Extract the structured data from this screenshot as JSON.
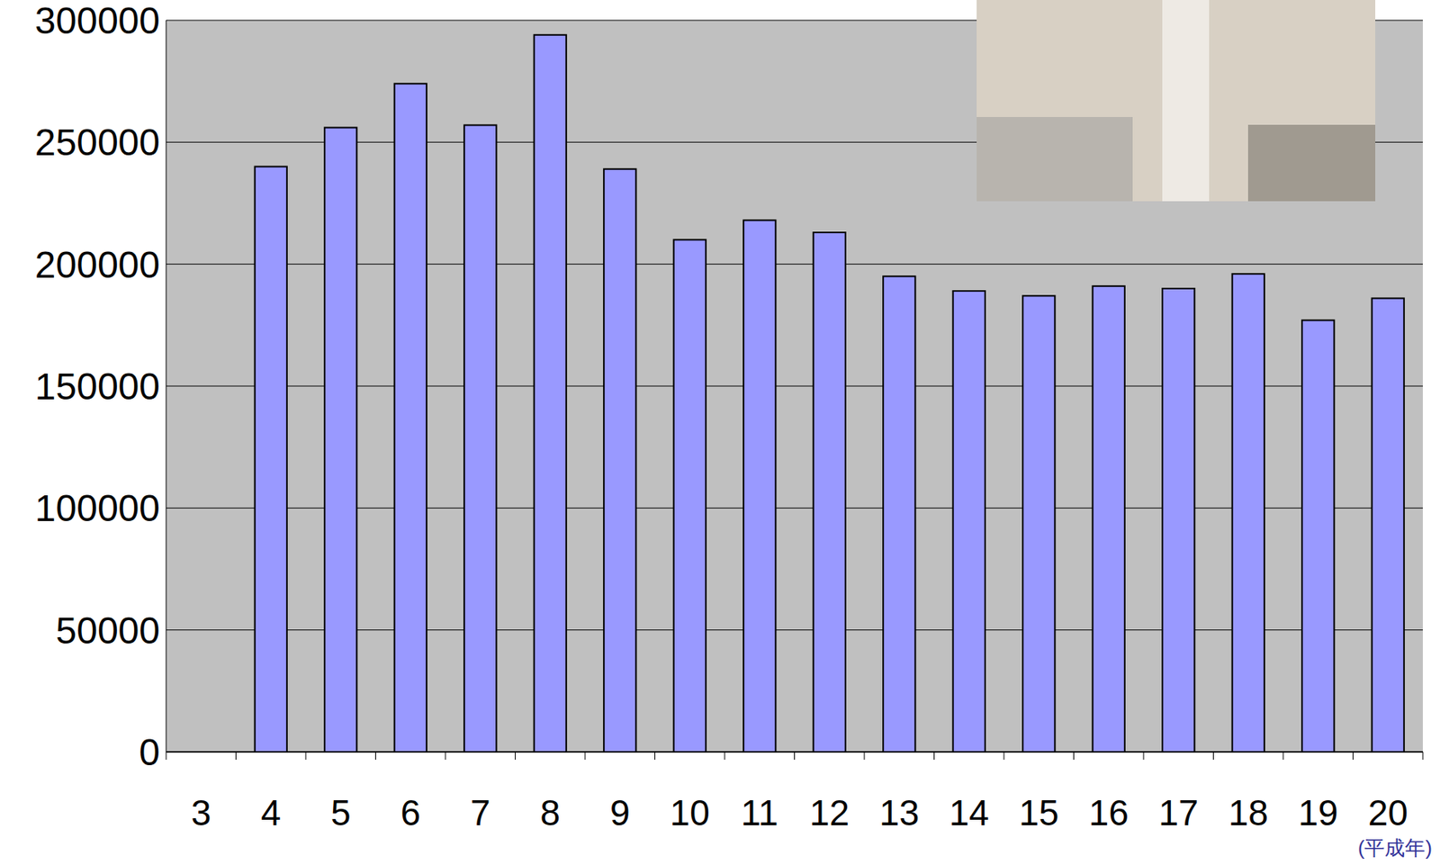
{
  "chart_data": {
    "type": "bar",
    "x_label": "(平成年)",
    "categories": [
      "3",
      "4",
      "5",
      "6",
      "7",
      "8",
      "9",
      "10",
      "11",
      "12",
      "13",
      "14",
      "15",
      "16",
      "17",
      "18",
      "19",
      "20"
    ],
    "values": [
      null,
      240000,
      256000,
      274000,
      257000,
      294000,
      239000,
      210000,
      218000,
      213000,
      195000,
      189000,
      187000,
      191000,
      190000,
      196000,
      177000,
      186000
    ],
    "color": "#9999ff",
    "ylim": [
      0,
      300000
    ],
    "yticks": [
      0,
      50000,
      100000,
      150000,
      200000,
      250000,
      300000
    ],
    "grid": true
  }
}
